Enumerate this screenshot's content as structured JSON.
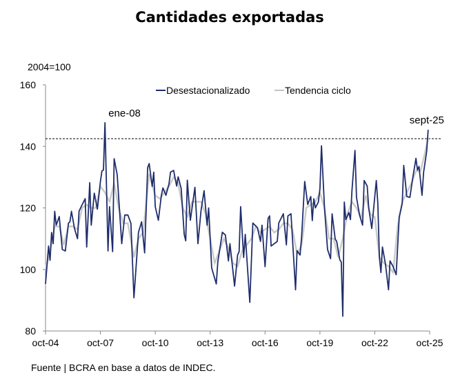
{
  "chart_data": {
    "type": "line",
    "title": "Cantidades exportadas",
    "ylabel": "2004=100",
    "ylim": [
      80,
      160
    ],
    "yticks": [
      "80",
      "100",
      "120",
      "140",
      "160"
    ],
    "xlim": [
      "2004-10",
      "2025-10"
    ],
    "xticks": [
      {
        "date": "2004-10",
        "label": "oct-04"
      },
      {
        "date": "2007-10",
        "label": "oct-07"
      },
      {
        "date": "2010-10",
        "label": "oct-10"
      },
      {
        "date": "2013-10",
        "label": "oct-13"
      },
      {
        "date": "2016-10",
        "label": "oct-16"
      },
      {
        "date": "2019-10",
        "label": "oct-19"
      },
      {
        "date": "2022-10",
        "label": "oct-22"
      },
      {
        "date": "2025-10",
        "label": "oct-25"
      }
    ],
    "grid": false,
    "legend": "top-center",
    "reference_line": {
      "y": 142.5,
      "style": "dashed"
    },
    "annotations": [
      {
        "date": "2008-01",
        "value": 147.7,
        "label": "ene-08"
      },
      {
        "date": "2025-09",
        "value": 145.4,
        "label": "sept-25"
      }
    ],
    "series": [
      {
        "name": "Desestacionalizado",
        "color": "#1f2d6b",
        "points": [
          [
            "2004-10",
            95.3
          ],
          [
            "2004-12",
            107.6
          ],
          [
            "2005-01",
            103
          ],
          [
            "2005-02",
            112
          ],
          [
            "2005-03",
            108.4
          ],
          [
            "2005-04",
            118.9
          ],
          [
            "2005-05",
            114.4
          ],
          [
            "2005-07",
            117.2
          ],
          [
            "2005-09",
            106.5
          ],
          [
            "2005-11",
            106
          ],
          [
            "2006-01",
            115
          ],
          [
            "2006-02",
            115.5
          ],
          [
            "2006-03",
            118.9
          ],
          [
            "2006-05",
            113.3
          ],
          [
            "2006-07",
            110
          ],
          [
            "2006-08",
            118.9
          ],
          [
            "2006-10",
            121
          ],
          [
            "2006-12",
            123
          ],
          [
            "2007-01",
            107.3
          ],
          [
            "2007-03",
            128.2
          ],
          [
            "2007-04",
            114.4
          ],
          [
            "2007-06",
            124.8
          ],
          [
            "2007-08",
            119.6
          ],
          [
            "2007-10",
            128.6
          ],
          [
            "2007-11",
            132
          ],
          [
            "2007-12",
            132.3
          ],
          [
            "2008-01",
            147.7
          ],
          [
            "2008-03",
            106
          ],
          [
            "2008-04",
            120.4
          ],
          [
            "2008-06",
            105.8
          ],
          [
            "2008-07",
            136
          ],
          [
            "2008-09",
            130.8
          ],
          [
            "2008-12",
            108.4
          ],
          [
            "2009-02",
            117.7
          ],
          [
            "2009-04",
            117.7
          ],
          [
            "2009-06",
            115
          ],
          [
            "2009-08",
            90.8
          ],
          [
            "2009-11",
            112.1
          ],
          [
            "2010-01",
            115.5
          ],
          [
            "2010-03",
            105.4
          ],
          [
            "2010-05",
            133.1
          ],
          [
            "2010-06",
            134.4
          ],
          [
            "2010-08",
            127
          ],
          [
            "2010-09",
            131.6
          ],
          [
            "2010-10",
            120.4
          ],
          [
            "2010-12",
            116
          ],
          [
            "2011-02",
            124.1
          ],
          [
            "2011-03",
            126.5
          ],
          [
            "2011-05",
            124.1
          ],
          [
            "2011-07",
            127.8
          ],
          [
            "2011-08",
            131.6
          ],
          [
            "2011-10",
            132.2
          ],
          [
            "2011-12",
            127.1
          ],
          [
            "2012-01",
            130.1
          ],
          [
            "2012-03",
            126.3
          ],
          [
            "2012-05",
            111.4
          ],
          [
            "2012-06",
            109.3
          ],
          [
            "2012-07",
            129
          ],
          [
            "2012-09",
            116
          ],
          [
            "2012-12",
            126.7
          ],
          [
            "2013-02",
            108.4
          ],
          [
            "2013-04",
            119.2
          ],
          [
            "2013-06",
            125.6
          ],
          [
            "2013-08",
            114.4
          ],
          [
            "2013-09",
            120
          ],
          [
            "2013-11",
            100.5
          ],
          [
            "2014-02",
            95.3
          ],
          [
            "2014-03",
            102.4
          ],
          [
            "2014-06",
            112.1
          ],
          [
            "2014-08",
            111.2
          ],
          [
            "2014-10",
            102.8
          ],
          [
            "2014-11",
            108.4
          ],
          [
            "2015-02",
            94.6
          ],
          [
            "2015-04",
            104.7
          ],
          [
            "2015-05",
            105.8
          ],
          [
            "2015-06",
            120.4
          ],
          [
            "2015-08",
            103.9
          ],
          [
            "2015-09",
            111.4
          ],
          [
            "2015-12",
            89.3
          ],
          [
            "2016-02",
            115.1
          ],
          [
            "2016-05",
            113.6
          ],
          [
            "2016-07",
            109.1
          ],
          [
            "2016-08",
            114.4
          ],
          [
            "2016-10",
            100.9
          ],
          [
            "2016-12",
            116.6
          ],
          [
            "2017-01",
            117.4
          ],
          [
            "2017-02",
            107.6
          ],
          [
            "2017-06",
            109.1
          ],
          [
            "2017-07",
            115.1
          ],
          [
            "2017-10",
            118.1
          ],
          [
            "2017-12",
            108
          ],
          [
            "2018-01",
            117.4
          ],
          [
            "2018-03",
            118.1
          ],
          [
            "2018-06",
            93.4
          ],
          [
            "2018-07",
            106.1
          ],
          [
            "2018-09",
            104.7
          ],
          [
            "2018-10",
            110.6
          ],
          [
            "2018-12",
            128.6
          ],
          [
            "2019-02",
            121.1
          ],
          [
            "2019-04",
            123.7
          ],
          [
            "2019-05",
            115.9
          ],
          [
            "2019-06",
            123
          ],
          [
            "2019-07",
            120
          ],
          [
            "2019-09",
            121.9
          ],
          [
            "2019-10",
            126.3
          ],
          [
            "2019-11",
            140.2
          ],
          [
            "2020-01",
            120
          ],
          [
            "2020-03",
            106.5
          ],
          [
            "2020-05",
            103.5
          ],
          [
            "2020-06",
            118.1
          ],
          [
            "2020-08",
            109.9
          ],
          [
            "2020-09",
            109.1
          ],
          [
            "2020-11",
            103.2
          ],
          [
            "2020-12",
            102.4
          ],
          [
            "2021-01",
            84.8
          ],
          [
            "2021-02",
            121.9
          ],
          [
            "2021-03",
            116.2
          ],
          [
            "2021-05",
            118.5
          ],
          [
            "2021-06",
            116.2
          ],
          [
            "2021-07",
            125.6
          ],
          [
            "2021-09",
            138.7
          ],
          [
            "2021-10",
            123.4
          ],
          [
            "2021-12",
            117.7
          ],
          [
            "2022-02",
            114.4
          ],
          [
            "2022-03",
            128.9
          ],
          [
            "2022-05",
            127.1
          ],
          [
            "2022-06",
            120
          ],
          [
            "2022-08",
            113.3
          ],
          [
            "2022-11",
            128.9
          ],
          [
            "2022-12",
            121.5
          ],
          [
            "2023-01",
            103.9
          ],
          [
            "2023-02",
            99
          ],
          [
            "2023-03",
            107.3
          ],
          [
            "2023-05",
            101.7
          ],
          [
            "2023-07",
            93.4
          ],
          [
            "2023-08",
            102.8
          ],
          [
            "2023-10",
            100.9
          ],
          [
            "2023-12",
            98.3
          ],
          [
            "2024-02",
            117
          ],
          [
            "2024-04",
            121.5
          ],
          [
            "2024-05",
            133.8
          ],
          [
            "2024-07",
            123.7
          ],
          [
            "2024-09",
            123.4
          ],
          [
            "2024-11",
            130.1
          ],
          [
            "2025-01",
            136.1
          ],
          [
            "2025-02",
            132.3
          ],
          [
            "2025-03",
            133.5
          ],
          [
            "2025-05",
            124.1
          ],
          [
            "2025-06",
            131.6
          ],
          [
            "2025-08",
            138.3
          ],
          [
            "2025-09",
            145.4
          ]
        ]
      },
      {
        "name": "Tendencia ciclo",
        "color": "#c4c4c4",
        "points": [
          [
            "2004-10",
            100
          ],
          [
            "2005-01",
            106
          ],
          [
            "2005-04",
            114
          ],
          [
            "2005-07",
            114
          ],
          [
            "2005-10",
            108
          ],
          [
            "2006-01",
            114
          ],
          [
            "2006-04",
            114
          ],
          [
            "2006-07",
            113
          ],
          [
            "2006-10",
            120
          ],
          [
            "2007-01",
            121
          ],
          [
            "2007-04",
            120
          ],
          [
            "2007-07",
            120
          ],
          [
            "2007-10",
            127
          ],
          [
            "2008-01",
            125
          ],
          [
            "2008-04",
            122
          ],
          [
            "2008-07",
            128
          ],
          [
            "2008-10",
            120
          ],
          [
            "2009-01",
            115
          ],
          [
            "2009-04",
            115
          ],
          [
            "2009-08",
            104
          ],
          [
            "2009-11",
            110
          ],
          [
            "2010-02",
            112
          ],
          [
            "2010-06",
            131
          ],
          [
            "2010-10",
            124
          ],
          [
            "2011-01",
            123
          ],
          [
            "2011-04",
            125
          ],
          [
            "2011-07",
            127
          ],
          [
            "2011-10",
            130
          ],
          [
            "2012-01",
            128
          ],
          [
            "2012-04",
            120
          ],
          [
            "2012-07",
            117
          ],
          [
            "2012-10",
            122
          ],
          [
            "2013-01",
            122
          ],
          [
            "2013-04",
            122
          ],
          [
            "2013-07",
            118
          ],
          [
            "2013-10",
            110
          ],
          [
            "2014-01",
            102
          ],
          [
            "2014-04",
            106
          ],
          [
            "2014-07",
            110
          ],
          [
            "2014-10",
            107
          ],
          [
            "2015-01",
            102
          ],
          [
            "2015-04",
            101
          ],
          [
            "2015-07",
            106
          ],
          [
            "2015-10",
            108
          ],
          [
            "2016-01",
            110
          ],
          [
            "2016-04",
            114
          ],
          [
            "2016-07",
            112
          ],
          [
            "2016-10",
            113
          ],
          [
            "2017-01",
            114
          ],
          [
            "2017-04",
            112
          ],
          [
            "2017-07",
            113
          ],
          [
            "2017-10",
            115
          ],
          [
            "2018-01",
            115
          ],
          [
            "2018-04",
            113
          ],
          [
            "2018-07",
            105
          ],
          [
            "2018-10",
            108
          ],
          [
            "2019-01",
            120
          ],
          [
            "2019-04",
            121
          ],
          [
            "2019-07",
            122
          ],
          [
            "2019-10",
            125
          ],
          [
            "2020-01",
            120
          ],
          [
            "2020-04",
            110
          ],
          [
            "2020-07",
            110
          ],
          [
            "2020-10",
            104
          ],
          [
            "2021-01",
            110
          ],
          [
            "2021-04",
            118
          ],
          [
            "2021-07",
            122
          ],
          [
            "2021-10",
            120
          ],
          [
            "2022-01",
            117
          ],
          [
            "2022-04",
            124
          ],
          [
            "2022-07",
            118
          ],
          [
            "2022-10",
            117
          ],
          [
            "2023-01",
            104
          ],
          [
            "2023-04",
            102
          ],
          [
            "2023-07",
            101
          ],
          [
            "2023-10",
            99
          ],
          [
            "2024-01",
            114
          ],
          [
            "2024-04",
            122
          ],
          [
            "2024-07",
            125
          ],
          [
            "2024-10",
            128
          ],
          [
            "2025-01",
            132
          ],
          [
            "2025-04",
            132
          ],
          [
            "2025-07",
            138
          ],
          [
            "2025-09",
            143
          ]
        ]
      }
    ]
  },
  "source": "Fuente | BCRA en base a datos de INDEC."
}
